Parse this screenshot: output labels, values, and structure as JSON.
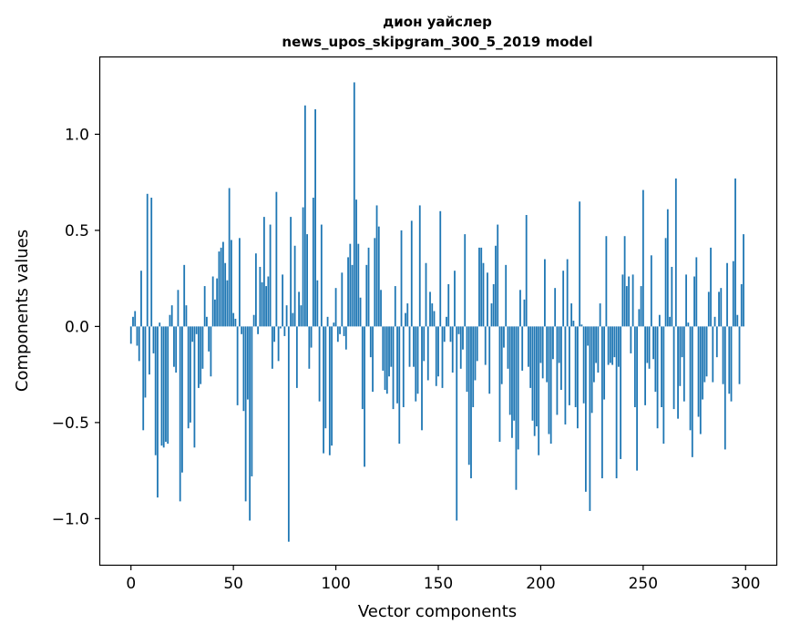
{
  "chart_data": {
    "type": "bar",
    "title_line1": "дион уайслер",
    "title_line2": "news_upos_skipgram_300_5_2019 model",
    "xlabel": "Vector components",
    "ylabel": "Components values",
    "xlim": [
      -15,
      315
    ],
    "ylim": [
      -1.24,
      1.4
    ],
    "xticks": [
      0,
      50,
      100,
      150,
      200,
      250,
      300
    ],
    "yticks": [
      -1.0,
      -0.5,
      0.0,
      0.5,
      1.0
    ],
    "ytick_labels": [
      "−1.0",
      "−0.5",
      "0.0",
      "0.5",
      "1.0"
    ],
    "grid": false,
    "bar_color": "#1f77b4",
    "values": [
      -0.09,
      0.05,
      0.08,
      -0.1,
      -0.18,
      0.29,
      -0.54,
      -0.37,
      0.69,
      -0.25,
      0.67,
      -0.14,
      -0.67,
      -0.89,
      0.02,
      -0.62,
      -0.63,
      -0.6,
      -0.61,
      0.06,
      0.11,
      -0.21,
      -0.24,
      0.19,
      -0.91,
      -0.76,
      0.32,
      0.11,
      -0.53,
      -0.5,
      -0.08,
      -0.63,
      -0.04,
      -0.32,
      -0.3,
      -0.22,
      0.21,
      0.05,
      -0.13,
      -0.26,
      0.26,
      0.14,
      0.25,
      0.39,
      0.41,
      0.44,
      0.33,
      0.24,
      0.72,
      0.45,
      0.07,
      0.04,
      -0.41,
      0.46,
      -0.04,
      -0.44,
      -0.91,
      -0.38,
      -1.01,
      -0.78,
      0.06,
      0.38,
      -0.04,
      0.31,
      0.23,
      0.57,
      0.21,
      0.26,
      0.53,
      -0.22,
      -0.08,
      0.7,
      -0.18,
      -0.01,
      0.27,
      -0.05,
      0.11,
      -1.12,
      0.57,
      0.07,
      0.42,
      -0.32,
      0.18,
      0.11,
      0.62,
      1.15,
      0.48,
      -0.22,
      -0.11,
      0.67,
      1.13,
      0.24,
      -0.39,
      0.53,
      -0.66,
      -0.53,
      0.05,
      -0.67,
      -0.62,
      0.02,
      0.2,
      -0.08,
      -0.04,
      0.28,
      -0.05,
      -0.12,
      0.36,
      0.43,
      0.32,
      1.27,
      0.66,
      0.43,
      0.15,
      -0.43,
      -0.73,
      0.32,
      0.41,
      -0.16,
      -0.34,
      0.46,
      0.63,
      0.52,
      0.19,
      -0.23,
      -0.33,
      -0.35,
      -0.26,
      -0.21,
      -0.43,
      0.21,
      -0.4,
      -0.61,
      0.5,
      -0.42,
      0.07,
      0.12,
      -0.21,
      0.55,
      -0.21,
      -0.39,
      -0.35,
      0.63,
      -0.54,
      -0.18,
      0.33,
      -0.28,
      0.18,
      0.12,
      0.08,
      -0.31,
      -0.26,
      0.6,
      -0.32,
      -0.08,
      0.05,
      0.22,
      -0.08,
      -0.24,
      0.29,
      -1.01,
      -0.04,
      -0.22,
      -0.12,
      0.48,
      -0.34,
      -0.72,
      -0.79,
      -0.42,
      -0.28,
      -0.18,
      0.41,
      0.41,
      0.33,
      -0.2,
      0.28,
      -0.35,
      0.12,
      0.22,
      0.42,
      0.53,
      -0.6,
      -0.3,
      -0.11,
      0.32,
      -0.22,
      -0.46,
      -0.58,
      -0.49,
      -0.85,
      -0.64,
      0.19,
      -0.23,
      0.14,
      0.58,
      -0.21,
      -0.32,
      -0.49,
      -0.57,
      -0.52,
      -0.67,
      -0.19,
      -0.27,
      0.35,
      -0.29,
      -0.56,
      -0.61,
      -0.17,
      0.2,
      -0.46,
      -0.19,
      -0.33,
      0.29,
      -0.51,
      0.35,
      -0.41,
      0.12,
      0.03,
      -0.42,
      -0.53,
      0.65,
      0.01,
      -0.4,
      -0.86,
      -0.1,
      -0.96,
      -0.45,
      -0.29,
      -0.19,
      -0.24,
      0.12,
      -0.79,
      -0.38,
      0.47,
      -0.2,
      -0.19,
      -0.2,
      -0.16,
      -0.79,
      -0.21,
      -0.69,
      0.27,
      0.47,
      0.21,
      0.26,
      -0.14,
      0.27,
      -0.42,
      -0.75,
      0.09,
      0.21,
      0.71,
      -0.41,
      -0.19,
      -0.22,
      0.37,
      -0.17,
      -0.34,
      -0.53,
      0.06,
      -0.42,
      -0.61,
      0.46,
      0.61,
      0.05,
      0.31,
      -0.43,
      0.77,
      -0.48,
      -0.31,
      -0.16,
      -0.39,
      0.27,
      0.02,
      -0.54,
      -0.68,
      0.26,
      0.36,
      -0.47,
      -0.56,
      -0.38,
      -0.29,
      -0.26,
      0.18,
      0.41,
      -0.29,
      0.05,
      -0.16,
      0.18,
      0.2,
      -0.3,
      -0.64,
      0.33,
      -0.35,
      -0.39,
      0.34,
      0.77,
      0.06,
      -0.3,
      0.22,
      0.48
    ]
  }
}
